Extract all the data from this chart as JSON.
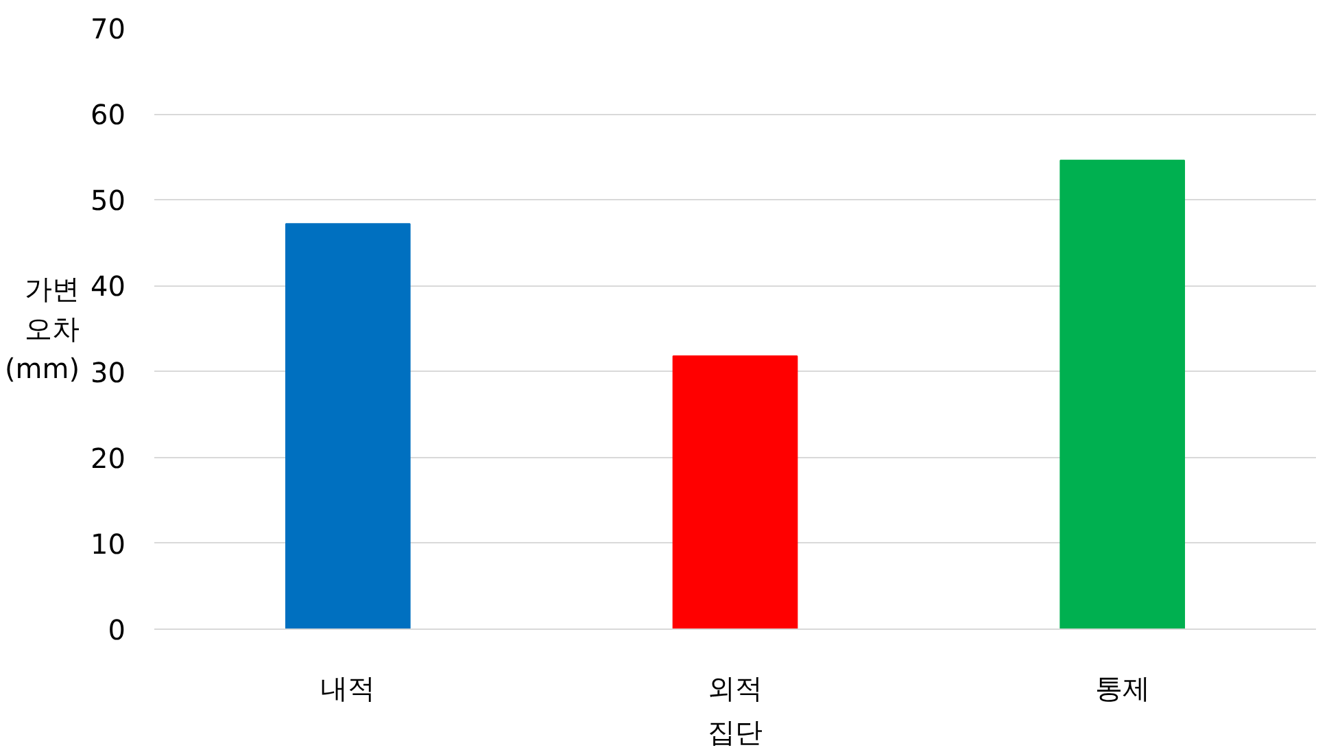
{
  "chart_data": {
    "type": "bar",
    "xlabel": "집단",
    "ylabel": "가변\n오차\n(mm)",
    "categories": [
      "내적",
      "외적",
      "통제"
    ],
    "values": [
      47.2,
      31.8,
      54.6
    ],
    "colors": [
      "#0070c0",
      "#ff0000",
      "#00b050"
    ],
    "ylim": [
      0,
      70
    ],
    "yticks": [
      0,
      10,
      20,
      30,
      40,
      50,
      60,
      70
    ],
    "grid": "y"
  }
}
